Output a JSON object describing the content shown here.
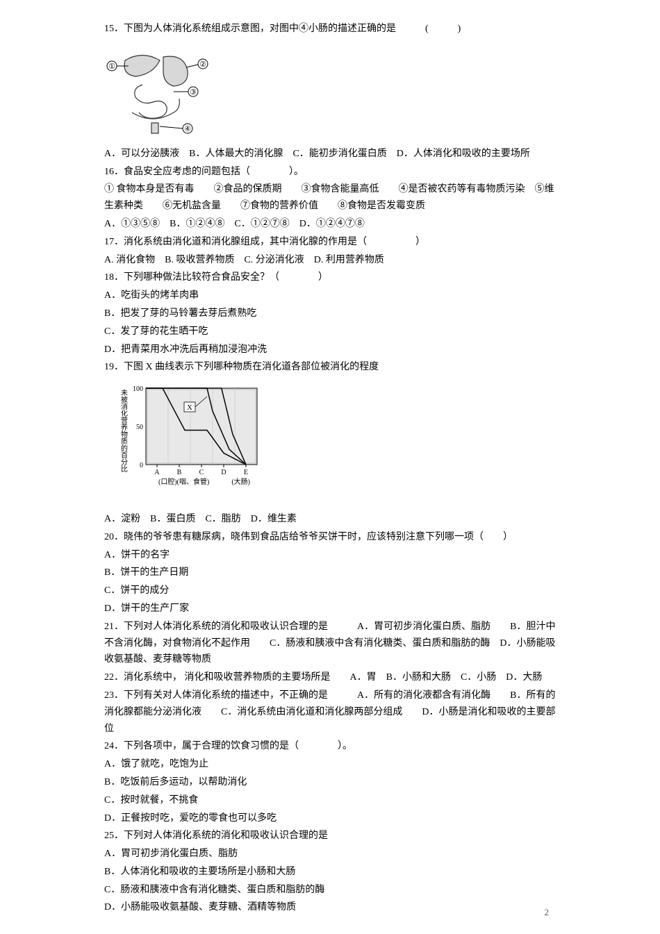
{
  "q15": {
    "stem": "15．下图为人体消化系统组成示意图，对图中④小肠的描述正确的是　　　(　　　)",
    "opts": "A．可以分泌胰液　B．人体最大的消化腺　C．能初步消化蛋白质　D．人体消化和吸收的主要场所",
    "diagram": {
      "labels": [
        "①",
        "②",
        "③",
        "④"
      ]
    }
  },
  "q16": {
    "stem": "16．食品安全应考虑的问题包括（　　　　）。",
    "l1": "① 食物本身是否有毒　　②食品的保质期　　③食物含能量高低　　④是否被农药等有毒物质污染　⑤维生素种类　　⑥无机盐含量　　⑦食物的营养价值　　⑧食物是否发霉变质",
    "opts": "A．①③⑤⑧　B．①②④⑧　C．①②⑦⑧　D．①②④⑦⑧"
  },
  "q17": {
    "stem": "17．消化系统由消化道和消化腺组成，其中消化腺的作用是（　　　　　）",
    "opts": "A. 消化食物　B. 吸收营养物质　C. 分泌消化液　D. 利用营养物质"
  },
  "q18": {
    "stem": "18．下列哪种做法比较符合食品安全？（　　　　）",
    "a": "A．吃街头的烤羊肉串",
    "b": "B．把发了芽的马铃薯去芽后煮熟吃",
    "c": "C．发了芽的花生晒干吃",
    "d": "D．把青菜用水冲洗后再稍加浸泡冲洗"
  },
  "q19": {
    "stem": "19．下图 X 曲线表示下列哪种物质在消化道各部位被消化的程度",
    "opts": "A．淀粉　B．蛋白质　C．脂肪　D．维生素",
    "chart": {
      "ylabel_chars": [
        "未",
        "被",
        "消",
        "化",
        "营",
        "养",
        "物",
        "质",
        "的",
        "百",
        "分",
        "比"
      ],
      "yaxis": {
        "ticks": [
          0,
          50,
          100
        ],
        "labels": [
          "0",
          "50",
          "100"
        ]
      },
      "xaxis": {
        "ticks": [
          "A",
          "B",
          "C",
          "D",
          "E"
        ],
        "left_label": "(口腔)(咽、食管)",
        "right_label": "(大肠)"
      },
      "x_label": "X",
      "background": "#e8e8e8",
      "line_color": "#000000",
      "curves": [
        {
          "name": "left",
          "points": [
            [
              0,
              100
            ],
            [
              15,
              100
            ],
            [
              35,
              45
            ],
            [
              55,
              45
            ],
            [
              70,
              15
            ],
            [
              90,
              0
            ]
          ]
        },
        {
          "name": "X",
          "points": [
            [
              0,
              100
            ],
            [
              35,
              100
            ],
            [
              55,
              100
            ],
            [
              60,
              70
            ],
            [
              75,
              20
            ],
            [
              90,
              0
            ]
          ]
        },
        {
          "name": "right",
          "points": [
            [
              0,
              100
            ],
            [
              55,
              100
            ],
            [
              68,
              100
            ],
            [
              78,
              40
            ],
            [
              90,
              0
            ]
          ]
        }
      ]
    }
  },
  "q20": {
    "stem": "20．晓伟的爷爷患有糖尿病，晓伟到食品店给爷爷买饼干时，应该特别注意下列哪一项（　　）",
    "a": "A．饼干的名字",
    "b": "B．饼干的生产日期",
    "c": "C．饼干的成分",
    "d": "D．饼干的生产厂家"
  },
  "q21": {
    "stem": "21．下列对人体消化系统的消化和吸收认识合理的是　　　A．胃可初步消化蛋白质、脂肪　　B．胆汁中不含消化酶，对食物消化不起作用　　C．肠液和胰液中含有消化糖类、蛋白质和脂肪的酶　D．小肠能吸收氨基酸、麦芽糖等物质"
  },
  "q22": {
    "stem": "22．消化系统中， 消化和吸收营养物质的主要场所是　　A．胃　B．小肠和大肠　C．小肠　D．大肠"
  },
  "q23": {
    "stem": "23．下列有关对人体消化系统的描述中，不正确的是　　　A．所有的消化液都含有消化酶　　B．所有的消化腺都能分泌消化液　　C．消化系统由消化道和消化腺两部分组成　　D．小肠是消化和吸收的主要部位"
  },
  "q24": {
    "stem": "24．下列各项中，属于合理的饮食习惯的是（　　　　）。",
    "a": "A．饿了就吃，吃饱为止",
    "b": "B．吃饭前后多运动，以帮助消化",
    "c": "C．按时就餐，不挑食",
    "d": "D．正餐按时吃，爱吃的零食也可以多吃"
  },
  "q25": {
    "stem": "25．下列对人体消化系统的消化和吸收认识合理的是",
    "a": "A．胃可初步消化蛋白质、脂肪",
    "b": "B．人体消化和吸收的主要场所是小肠和大肠",
    "c": "C．肠液和胰液中含有消化糖类、蛋白质和脂肪的酶",
    "d": "D．小肠能吸收氨基酸、麦芽糖、酒精等物质"
  },
  "footer": "2"
}
